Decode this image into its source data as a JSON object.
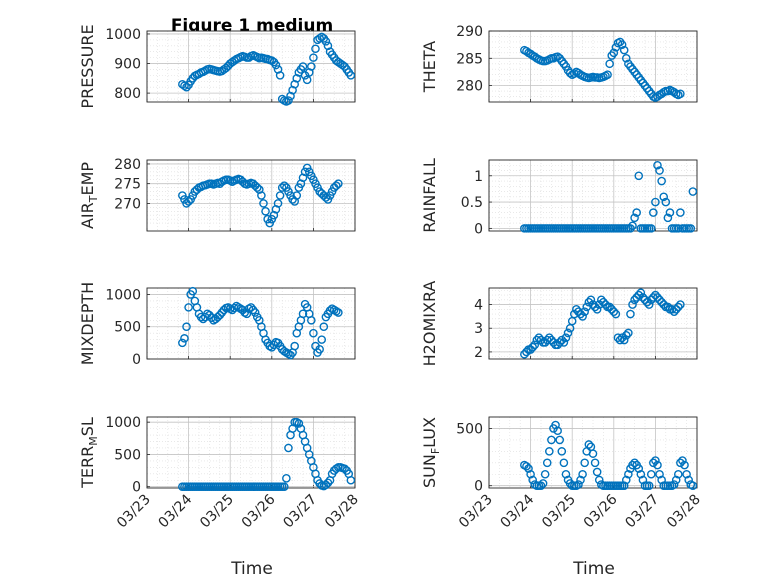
{
  "figure": {
    "title": "Figure 1 medium",
    "xlabel": "Time",
    "x_tick_labels": [
      "03/23",
      "03/24",
      "03/25",
      "03/26",
      "03/27",
      "03/28"
    ],
    "marker_color": "#0072BD",
    "grid": "on (major + minor dotted)"
  },
  "chart_data": [
    {
      "id": "pressure",
      "type": "scatter",
      "ylabel_main": "PRESSURE",
      "ylabel_sub": "",
      "ylim": [
        770,
        1010
      ],
      "yticks": [
        800,
        900,
        1000
      ],
      "x": [
        23.85,
        23.9,
        23.95,
        24.0,
        24.05,
        24.1,
        24.15,
        24.2,
        24.25,
        24.3,
        24.35,
        24.4,
        24.45,
        24.5,
        24.55,
        24.6,
        24.65,
        24.7,
        24.75,
        24.8,
        24.85,
        24.9,
        24.95,
        25.0,
        25.05,
        25.1,
        25.15,
        25.2,
        25.25,
        25.3,
        25.35,
        25.4,
        25.45,
        25.5,
        25.55,
        25.6,
        25.65,
        25.7,
        25.75,
        25.8,
        25.85,
        25.9,
        25.95,
        26.0,
        26.05,
        26.1,
        26.15,
        26.2,
        26.25,
        26.3,
        26.35,
        26.4,
        26.45,
        26.5,
        26.55,
        26.6,
        26.65,
        26.7,
        26.75,
        26.8,
        26.85,
        26.9,
        26.95,
        27.0,
        27.05,
        27.1,
        27.15,
        27.2,
        27.25,
        27.3,
        27.35,
        27.4,
        27.45,
        27.5,
        27.55,
        27.6,
        27.65,
        27.7,
        27.75,
        27.8,
        27.85,
        27.9
      ],
      "y": [
        830,
        825,
        820,
        828,
        840,
        850,
        858,
        862,
        865,
        870,
        872,
        876,
        880,
        882,
        880,
        878,
        876,
        874,
        873,
        875,
        880,
        885,
        892,
        900,
        905,
        910,
        915,
        918,
        922,
        925,
        923,
        920,
        920,
        925,
        928,
        925,
        922,
        918,
        920,
        918,
        916,
        915,
        912,
        910,
        905,
        895,
        880,
        860,
        780,
        775,
        772,
        775,
        790,
        810,
        830,
        850,
        870,
        880,
        890,
        860,
        845,
        870,
        890,
        920,
        950,
        980,
        985,
        990,
        985,
        975,
        960,
        940,
        930,
        920,
        910,
        905,
        900,
        895,
        890,
        880,
        870,
        860
      ]
    },
    {
      "id": "theta",
      "type": "scatter",
      "ylabel_main": "THETA",
      "ylabel_sub": "",
      "ylim": [
        277,
        290
      ],
      "yticks": [
        280,
        285,
        290
      ],
      "x": [
        23.85,
        23.9,
        23.95,
        24.0,
        24.05,
        24.1,
        24.15,
        24.2,
        24.25,
        24.3,
        24.35,
        24.4,
        24.45,
        24.5,
        24.55,
        24.6,
        24.65,
        24.7,
        24.75,
        24.8,
        24.85,
        24.9,
        24.95,
        25.0,
        25.05,
        25.1,
        25.15,
        25.2,
        25.25,
        25.3,
        25.35,
        25.4,
        25.45,
        25.5,
        25.55,
        25.6,
        25.65,
        25.7,
        25.75,
        25.8,
        25.85,
        25.9,
        25.95,
        26.0,
        26.05,
        26.1,
        26.15,
        26.2,
        26.25,
        26.3,
        26.35,
        26.4,
        26.45,
        26.5,
        26.55,
        26.6,
        26.65,
        26.7,
        26.75,
        26.8,
        26.85,
        26.9,
        26.95,
        27.0,
        27.05,
        27.1,
        27.15,
        27.2,
        27.25,
        27.3,
        27.35,
        27.4,
        27.45,
        27.5,
        27.55,
        27.6
      ],
      "y": [
        286.5,
        286.3,
        286.0,
        285.8,
        285.5,
        285.3,
        285.0,
        284.8,
        284.6,
        284.5,
        284.5,
        284.6,
        284.8,
        285.0,
        285.0,
        285.2,
        285.3,
        285.0,
        284.5,
        284.0,
        283.5,
        282.8,
        282.3,
        282.0,
        282.2,
        282.5,
        282.3,
        282.0,
        281.8,
        281.6,
        281.5,
        281.4,
        281.5,
        281.6,
        281.5,
        281.5,
        281.4,
        281.5,
        281.6,
        281.8,
        282.0,
        284.0,
        285.5,
        286.0,
        287.0,
        287.8,
        288.0,
        287.5,
        286.5,
        285.0,
        284.0,
        283.5,
        283.0,
        282.5,
        282.0,
        281.5,
        281.0,
        280.5,
        280.0,
        279.5,
        279.0,
        278.5,
        278.0,
        277.8,
        278.0,
        278.3,
        278.5,
        278.8,
        279.0,
        279.0,
        279.2,
        279.0,
        278.8,
        278.5,
        278.3,
        278.5
      ]
    },
    {
      "id": "air_temp",
      "type": "scatter",
      "ylabel_main": "AIR",
      "ylabel_sub": "T",
      "ylabel_rest": "EMP",
      "ylim": [
        263,
        281
      ],
      "yticks": [
        270,
        275,
        280
      ],
      "x": [
        23.85,
        23.9,
        23.95,
        24.0,
        24.05,
        24.1,
        24.15,
        24.2,
        24.25,
        24.3,
        24.35,
        24.4,
        24.45,
        24.5,
        24.55,
        24.6,
        24.65,
        24.7,
        24.75,
        24.8,
        24.85,
        24.9,
        24.95,
        25.0,
        25.05,
        25.1,
        25.15,
        25.2,
        25.25,
        25.3,
        25.35,
        25.4,
        25.45,
        25.5,
        25.55,
        25.6,
        25.65,
        25.7,
        25.75,
        25.8,
        25.85,
        25.9,
        25.95,
        26.0,
        26.05,
        26.1,
        26.15,
        26.2,
        26.25,
        26.3,
        26.35,
        26.4,
        26.45,
        26.5,
        26.55,
        26.6,
        26.65,
        26.7,
        26.75,
        26.8,
        26.85,
        26.9,
        26.95,
        27.0,
        27.05,
        27.1,
        27.15,
        27.2,
        27.25,
        27.3,
        27.35,
        27.4,
        27.45,
        27.5,
        27.55,
        27.6
      ],
      "y": [
        272,
        271,
        270,
        270.5,
        271,
        272,
        273,
        273.5,
        274,
        274.2,
        274.5,
        274.6,
        274.8,
        275,
        275,
        274.8,
        275,
        275.2,
        275,
        275.5,
        275.8,
        276,
        276,
        275.8,
        275.5,
        275.8,
        276,
        276.2,
        276,
        275.5,
        275,
        274.8,
        275,
        275.2,
        275,
        274.5,
        274,
        273.5,
        272,
        270,
        268,
        266,
        265,
        266,
        267,
        268.5,
        270,
        272,
        274,
        274.5,
        274,
        273,
        272,
        271,
        270.5,
        272,
        274,
        275,
        276.5,
        278,
        279,
        278,
        277,
        276,
        275,
        274,
        273,
        272.5,
        272,
        271.5,
        271,
        272,
        273,
        274,
        274.5,
        275
      ]
    },
    {
      "id": "rainfall",
      "type": "scatter",
      "ylabel_main": "RAINFALL",
      "ylabel_sub": "",
      "ylim": [
        -0.05,
        1.3
      ],
      "yticks": [
        0,
        0.5,
        1
      ],
      "x": [
        23.85,
        23.9,
        23.95,
        24.0,
        24.05,
        24.1,
        24.15,
        24.2,
        24.25,
        24.3,
        24.35,
        24.4,
        24.45,
        24.5,
        24.55,
        24.6,
        24.65,
        24.7,
        24.75,
        24.8,
        24.85,
        24.9,
        24.95,
        25.0,
        25.05,
        25.1,
        25.15,
        25.2,
        25.25,
        25.3,
        25.35,
        25.4,
        25.45,
        25.5,
        25.55,
        25.6,
        25.65,
        25.7,
        25.75,
        25.8,
        25.85,
        25.9,
        25.95,
        26.0,
        26.05,
        26.1,
        26.15,
        26.2,
        26.25,
        26.3,
        26.35,
        26.4,
        26.45,
        26.5,
        26.55,
        26.6,
        26.65,
        26.7,
        26.75,
        26.8,
        26.85,
        26.9,
        26.95,
        27.0,
        27.05,
        27.1,
        27.15,
        27.2,
        27.25,
        27.3,
        27.35,
        27.4,
        27.45,
        27.5,
        27.55,
        27.6,
        27.65,
        27.7,
        27.75,
        27.8,
        27.85,
        27.9
      ],
      "y": [
        0,
        0,
        0,
        0,
        0,
        0,
        0,
        0,
        0,
        0,
        0,
        0,
        0,
        0,
        0,
        0,
        0,
        0,
        0,
        0,
        0,
        0,
        0,
        0,
        0,
        0,
        0,
        0,
        0,
        0,
        0,
        0,
        0,
        0,
        0,
        0,
        0,
        0,
        0,
        0,
        0,
        0,
        0,
        0,
        0,
        0,
        0,
        0,
        0,
        0,
        0,
        0,
        0.05,
        0.2,
        0.3,
        1.0,
        0,
        0,
        0,
        0,
        0,
        0,
        0.3,
        0.5,
        1.2,
        1.1,
        0.9,
        0.6,
        0.5,
        0.2,
        0.3,
        0,
        0,
        0,
        0,
        0.3,
        0,
        0,
        0,
        0,
        0,
        0.7
      ]
    },
    {
      "id": "mixdepth",
      "type": "scatter",
      "ylabel_main": "MIXDEPTH",
      "ylabel_sub": "",
      "ylim": [
        0,
        1100
      ],
      "yticks": [
        0,
        500,
        1000
      ],
      "x": [
        23.85,
        23.9,
        23.95,
        24.0,
        24.05,
        24.1,
        24.15,
        24.2,
        24.25,
        24.3,
        24.35,
        24.4,
        24.45,
        24.5,
        24.55,
        24.6,
        24.65,
        24.7,
        24.75,
        24.8,
        24.85,
        24.9,
        24.95,
        25.0,
        25.05,
        25.1,
        25.15,
        25.2,
        25.25,
        25.3,
        25.35,
        25.4,
        25.45,
        25.5,
        25.55,
        25.6,
        25.65,
        25.7,
        25.75,
        25.8,
        25.85,
        25.9,
        25.95,
        26.0,
        26.05,
        26.1,
        26.15,
        26.2,
        26.25,
        26.3,
        26.35,
        26.4,
        26.45,
        26.5,
        26.55,
        26.6,
        26.65,
        26.7,
        26.75,
        26.8,
        26.85,
        26.9,
        26.95,
        27.0,
        27.05,
        27.1,
        27.15,
        27.2,
        27.25,
        27.3,
        27.35,
        27.4,
        27.45,
        27.5,
        27.55,
        27.6
      ],
      "y": [
        250,
        320,
        500,
        800,
        1000,
        1050,
        900,
        800,
        700,
        650,
        620,
        650,
        700,
        680,
        640,
        600,
        620,
        650,
        680,
        720,
        760,
        790,
        800,
        780,
        760,
        790,
        820,
        800,
        780,
        760,
        720,
        700,
        780,
        800,
        760,
        720,
        650,
        600,
        500,
        400,
        300,
        250,
        200,
        180,
        220,
        260,
        250,
        200,
        150,
        120,
        100,
        80,
        60,
        100,
        200,
        400,
        500,
        600,
        700,
        850,
        800,
        700,
        600,
        400,
        200,
        100,
        150,
        300,
        500,
        650,
        700,
        750,
        780,
        760,
        740,
        720
      ]
    },
    {
      "id": "h2omixra",
      "type": "scatter",
      "ylabel_main": "H2OMIXRA",
      "ylabel_sub": "",
      "ylim": [
        1.7,
        4.7
      ],
      "yticks": [
        2,
        3,
        4
      ],
      "x": [
        23.85,
        23.9,
        23.95,
        24.0,
        24.05,
        24.1,
        24.15,
        24.2,
        24.25,
        24.3,
        24.35,
        24.4,
        24.45,
        24.5,
        24.55,
        24.6,
        24.65,
        24.7,
        24.75,
        24.8,
        24.85,
        24.9,
        24.95,
        25.0,
        25.05,
        25.1,
        25.15,
        25.2,
        25.25,
        25.3,
        25.35,
        25.4,
        25.45,
        25.5,
        25.55,
        25.6,
        25.65,
        25.7,
        25.75,
        25.8,
        25.85,
        25.9,
        25.95,
        26.0,
        26.05,
        26.1,
        26.15,
        26.2,
        26.25,
        26.3,
        26.35,
        26.4,
        26.45,
        26.5,
        26.55,
        26.6,
        26.65,
        26.7,
        26.75,
        26.8,
        26.85,
        26.9,
        26.95,
        27.0,
        27.05,
        27.1,
        27.15,
        27.2,
        27.25,
        27.3,
        27.35,
        27.4,
        27.45,
        27.5,
        27.55,
        27.6
      ],
      "y": [
        1.9,
        2.0,
        2.1,
        2.1,
        2.2,
        2.3,
        2.5,
        2.6,
        2.5,
        2.4,
        2.4,
        2.5,
        2.6,
        2.5,
        2.4,
        2.3,
        2.3,
        2.4,
        2.5,
        2.4,
        2.6,
        2.8,
        3.0,
        3.3,
        3.6,
        3.8,
        3.7,
        3.6,
        3.5,
        3.7,
        3.9,
        4.1,
        4.2,
        4.0,
        3.9,
        3.8,
        4.0,
        4.2,
        4.1,
        4.0,
        3.9,
        3.9,
        3.8,
        3.7,
        3.6,
        2.6,
        2.5,
        2.6,
        2.5,
        2.7,
        2.8,
        3.6,
        4.0,
        4.2,
        4.3,
        4.4,
        4.5,
        4.3,
        4.2,
        4.1,
        4.0,
        4.2,
        4.3,
        4.4,
        4.3,
        4.2,
        4.1,
        4.0,
        3.9,
        3.9,
        3.8,
        3.8,
        3.7,
        3.8,
        3.9,
        4.0
      ]
    },
    {
      "id": "terr_msl",
      "type": "scatter",
      "ylabel_main": "TERR",
      "ylabel_sub": "M",
      "ylabel_rest": "SL",
      "ylim": [
        -20,
        1080
      ],
      "yticks": [
        0,
        500,
        1000
      ],
      "x": [
        23.85,
        23.9,
        23.95,
        24.0,
        24.05,
        24.1,
        24.15,
        24.2,
        24.25,
        24.3,
        24.35,
        24.4,
        24.45,
        24.5,
        24.55,
        24.6,
        24.65,
        24.7,
        24.75,
        24.8,
        24.85,
        24.9,
        24.95,
        25.0,
        25.05,
        25.1,
        25.15,
        25.2,
        25.25,
        25.3,
        25.35,
        25.4,
        25.45,
        25.5,
        25.55,
        25.6,
        25.65,
        25.7,
        25.75,
        25.8,
        25.85,
        25.9,
        25.95,
        26.0,
        26.05,
        26.1,
        26.15,
        26.2,
        26.25,
        26.3,
        26.35,
        26.4,
        26.45,
        26.5,
        26.55,
        26.6,
        26.65,
        26.7,
        26.75,
        26.8,
        26.85,
        26.9,
        26.95,
        27.0,
        27.05,
        27.1,
        27.15,
        27.2,
        27.25,
        27.3,
        27.35,
        27.4,
        27.45,
        27.5,
        27.55,
        27.6,
        27.65,
        27.7,
        27.75,
        27.8,
        27.85,
        27.9
      ],
      "y": [
        0,
        0,
        0,
        0,
        0,
        0,
        0,
        0,
        0,
        0,
        0,
        0,
        0,
        0,
        0,
        0,
        0,
        0,
        0,
        0,
        0,
        0,
        0,
        0,
        0,
        0,
        0,
        0,
        0,
        0,
        0,
        0,
        0,
        0,
        0,
        0,
        0,
        0,
        0,
        0,
        0,
        0,
        0,
        0,
        0,
        0,
        0,
        0,
        0,
        0,
        130,
        600,
        800,
        900,
        1000,
        1000,
        980,
        900,
        800,
        700,
        600,
        500,
        400,
        300,
        200,
        100,
        50,
        20,
        10,
        30,
        60,
        100,
        200,
        250,
        280,
        300,
        300,
        290,
        280,
        250,
        200,
        100
      ]
    },
    {
      "id": "sun_flux",
      "type": "scatter",
      "ylabel_main": "SUN",
      "ylabel_sub": "F",
      "ylabel_rest": "LUX",
      "ylim": [
        -20,
        600
      ],
      "yticks": [
        0,
        500
      ],
      "x": [
        23.85,
        23.9,
        23.95,
        24.0,
        24.05,
        24.1,
        24.15,
        24.2,
        24.25,
        24.3,
        24.35,
        24.4,
        24.45,
        24.5,
        24.55,
        24.6,
        24.65,
        24.7,
        24.75,
        24.8,
        24.85,
        24.9,
        24.95,
        25.0,
        25.05,
        25.1,
        25.15,
        25.2,
        25.25,
        25.3,
        25.35,
        25.4,
        25.45,
        25.5,
        25.55,
        25.6,
        25.65,
        25.7,
        25.75,
        25.8,
        25.85,
        25.9,
        25.95,
        26.0,
        26.05,
        26.1,
        26.15,
        26.2,
        26.25,
        26.3,
        26.35,
        26.4,
        26.45,
        26.5,
        26.55,
        26.6,
        26.65,
        26.7,
        26.75,
        26.8,
        26.85,
        26.9,
        26.95,
        27.0,
        27.05,
        27.1,
        27.15,
        27.2,
        27.25,
        27.3,
        27.35,
        27.4,
        27.45,
        27.5,
        27.55,
        27.6,
        27.65,
        27.7,
        27.75,
        27.8,
        27.85,
        27.9
      ],
      "y": [
        180,
        170,
        150,
        100,
        50,
        10,
        0,
        0,
        0,
        20,
        100,
        200,
        300,
        400,
        500,
        530,
        480,
        400,
        300,
        200,
        100,
        50,
        20,
        0,
        0,
        0,
        10,
        50,
        100,
        200,
        300,
        360,
        340,
        280,
        200,
        120,
        50,
        10,
        0,
        0,
        0,
        0,
        0,
        0,
        0,
        0,
        0,
        0,
        0,
        50,
        100,
        150,
        180,
        200,
        180,
        150,
        100,
        50,
        0,
        0,
        0,
        100,
        200,
        220,
        180,
        100,
        50,
        0,
        0,
        0,
        0,
        0,
        10,
        50,
        100,
        200,
        220,
        180,
        100,
        50,
        10,
        0
      ]
    }
  ]
}
